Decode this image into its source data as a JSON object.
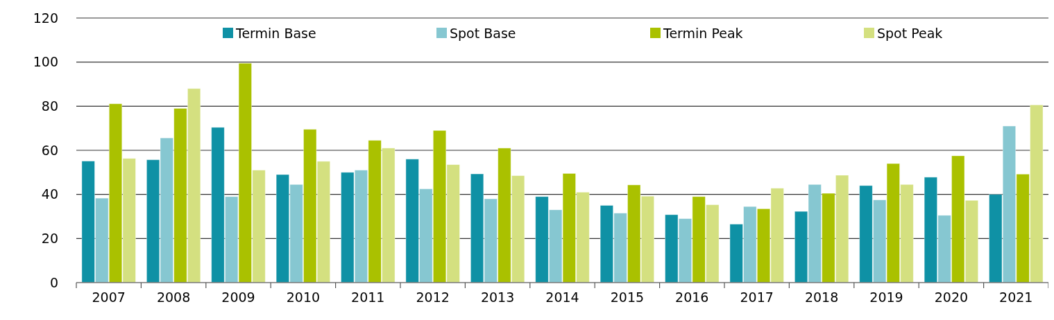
{
  "chart_data": {
    "type": "bar",
    "categories": [
      "2007",
      "2008",
      "2009",
      "2010",
      "2011",
      "2012",
      "2013",
      "2014",
      "2015",
      "2016",
      "2017",
      "2018",
      "2019",
      "2020",
      "2021"
    ],
    "series": [
      {
        "name": "Termin Base",
        "color": "#0f91a5",
        "values": [
          55.1,
          55.7,
          70.4,
          49,
          50,
          56,
          49.3,
          39,
          35,
          30.8,
          26.5,
          32.3,
          44,
          47.8,
          40
        ]
      },
      {
        "name": "Spot Base",
        "color": "#86c7d1",
        "values": [
          38.3,
          65.6,
          39,
          44.5,
          51,
          42.5,
          38,
          33,
          31.5,
          29,
          34.5,
          44.5,
          37.5,
          30.5,
          71
        ]
      },
      {
        "name": "Termin Peak",
        "color": "#aac100",
        "values": [
          81.1,
          79,
          99.5,
          69.5,
          64.5,
          69,
          61,
          49.5,
          44.3,
          39,
          33.5,
          40.5,
          54,
          57.5,
          49.2
        ]
      },
      {
        "name": "Spot Peak",
        "color": "#d4e080",
        "values": [
          56.3,
          88,
          51,
          55,
          61,
          53.5,
          48.5,
          41,
          39.2,
          35.3,
          42.8,
          48.7,
          44.5,
          37.3,
          80.6
        ]
      }
    ],
    "ylim": [
      0,
      120
    ],
    "yticks": [
      0,
      20,
      40,
      60,
      80,
      100,
      120
    ],
    "grid": "y",
    "legend": "top"
  }
}
